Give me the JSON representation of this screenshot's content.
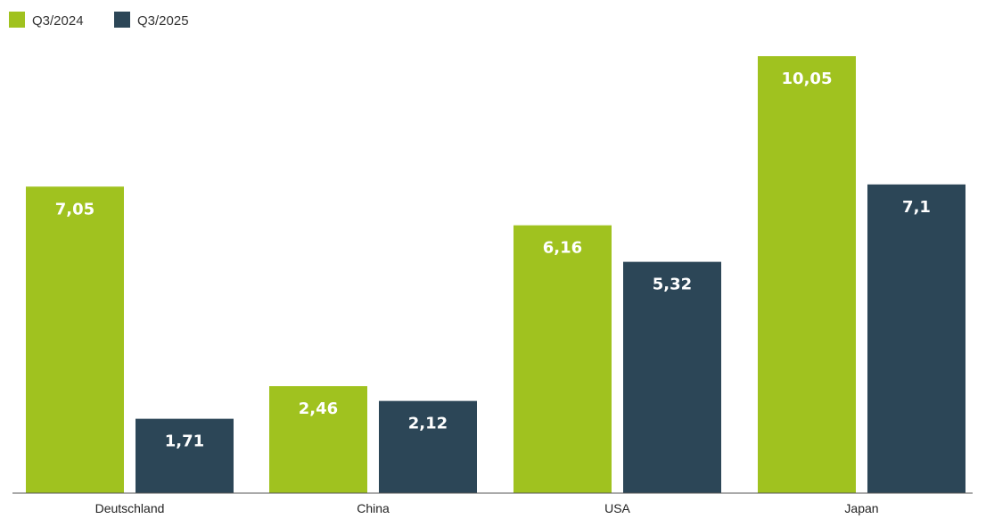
{
  "chart_data": {
    "type": "bar",
    "categories": [
      "Deutschland",
      "China",
      "USA",
      "Japan"
    ],
    "series": [
      {
        "name": "Q3/2024",
        "color": "#a0c21f",
        "values": [
          7.05,
          2.46,
          6.16,
          10.05
        ],
        "labels": [
          "7,05",
          "2,46",
          "6,16",
          "10,05"
        ]
      },
      {
        "name": "Q3/2025",
        "color": "#2c4657",
        "values": [
          1.71,
          2.12,
          5.32,
          7.1
        ],
        "labels": [
          "1,71",
          "2,12",
          "5,32",
          "7,1"
        ]
      }
    ],
    "ylim": [
      0,
      10.5
    ],
    "grid": false,
    "legend_position": "top-left",
    "title": "",
    "xlabel": "",
    "ylabel": ""
  }
}
